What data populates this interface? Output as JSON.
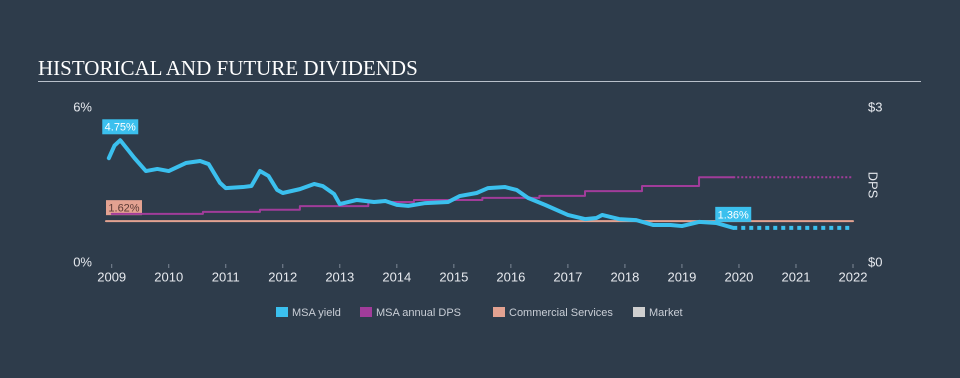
{
  "chart_data": {
    "type": "line",
    "title": "HISTORICAL AND FUTURE DIVIDENDS",
    "y2_label": "DPS",
    "xlim": [
      2008.9,
      2022
    ],
    "xticks": [
      2009,
      2010,
      2011,
      2012,
      2013,
      2014,
      2015,
      2016,
      2017,
      2018,
      2019,
      2020,
      2021,
      2022
    ],
    "ylim": [
      0,
      6
    ],
    "yticks": [
      {
        "value": 0,
        "label": "0%"
      },
      {
        "value": 6,
        "label": "6%"
      }
    ],
    "y2lim": [
      0,
      3
    ],
    "y2ticks": [
      {
        "value": 0,
        "label": "$0"
      },
      {
        "value": 3,
        "label": "$3"
      }
    ],
    "forecast_start": 2019.9,
    "series": [
      {
        "name": "MSA yield",
        "color": "#3bc0ee",
        "x": [
          2008.95,
          2009.05,
          2009.15,
          2009.4,
          2009.6,
          2009.8,
          2010.0,
          2010.3,
          2010.55,
          2010.7,
          2010.9,
          2011.0,
          2011.3,
          2011.45,
          2011.6,
          2011.75,
          2011.9,
          2012.0,
          2012.3,
          2012.55,
          2012.7,
          2012.9,
          2013.0,
          2013.3,
          2013.6,
          2013.8,
          2014.0,
          2014.2,
          2014.5,
          2014.9,
          2015.1,
          2015.4,
          2015.6,
          2015.9,
          2016.1,
          2016.3,
          2016.6,
          2017.0,
          2017.3,
          2017.5,
          2017.6,
          2017.9,
          2018.2,
          2018.5,
          2018.8,
          2019.0,
          2019.3,
          2019.6,
          2019.9,
          2022
        ],
        "values": [
          4.06,
          4.55,
          4.75,
          4.06,
          3.56,
          3.64,
          3.56,
          3.87,
          3.95,
          3.83,
          3.1,
          2.9,
          2.94,
          2.98,
          3.56,
          3.37,
          2.83,
          2.71,
          2.86,
          3.06,
          2.98,
          2.67,
          2.28,
          2.44,
          2.36,
          2.4,
          2.25,
          2.21,
          2.32,
          2.36,
          2.59,
          2.71,
          2.9,
          2.94,
          2.83,
          2.52,
          2.25,
          1.86,
          1.7,
          1.74,
          1.86,
          1.7,
          1.66,
          1.47,
          1.47,
          1.43,
          1.59,
          1.55,
          1.36,
          1.36
        ],
        "value_labels": [
          null,
          null,
          "4.75%",
          null,
          null,
          null,
          null,
          null,
          null,
          null,
          null,
          null,
          null,
          null,
          null,
          null,
          null,
          null,
          null,
          null,
          null,
          null,
          null,
          null,
          null,
          null,
          null,
          null,
          null,
          null,
          null,
          null,
          null,
          null,
          null,
          null,
          null,
          null,
          null,
          null,
          null,
          null,
          null,
          null,
          null,
          null,
          null,
          null,
          "1.36%",
          null
        ]
      },
      {
        "name": "MSA annual DPS",
        "color": "#a13c9a",
        "axis": "y2",
        "interpolation": "step",
        "x": [
          2009,
          2010.6,
          2011.6,
          2012.3,
          2013.5,
          2014.3,
          2015.5,
          2016.5,
          2017.3,
          2018.3,
          2019.3,
          2019.9,
          2022
        ],
        "values": [
          0.95,
          0.99,
          1.03,
          1.1,
          1.18,
          1.22,
          1.26,
          1.3,
          1.39,
          1.49,
          1.66,
          1.66,
          1.66
        ]
      },
      {
        "name": "Commercial Services",
        "color": "#e3a291",
        "x": [
          2008.9,
          2022
        ],
        "values": [
          1.62,
          1.62
        ],
        "value_labels": [
          "1.62%",
          null
        ]
      },
      {
        "name": "Market",
        "color": "#cfcfcf",
        "x": [],
        "values": []
      }
    ]
  }
}
